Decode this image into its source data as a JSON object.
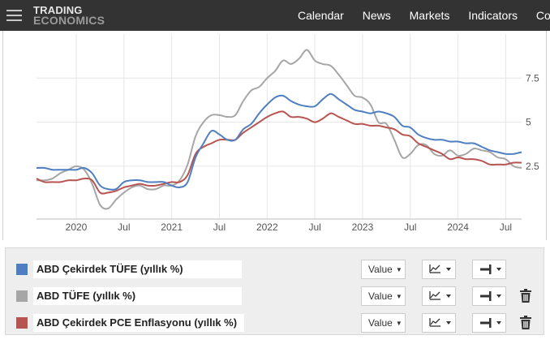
{
  "header": {
    "logo_line1": "TRADING",
    "logo_line2": "ECONOMICS",
    "nav": [
      "Calendar",
      "News",
      "Markets",
      "Indicators",
      "Countries"
    ]
  },
  "chart_data": {
    "type": "line",
    "x_ticks": [
      "2020",
      "Jul",
      "2021",
      "Jul",
      "2022",
      "Jul",
      "2023",
      "Jul",
      "2024",
      "Jul"
    ],
    "y_ticks": [
      "2.5",
      "5",
      "7.5"
    ],
    "ylim": [
      -0.5,
      10
    ],
    "xlim": [
      "2019-08",
      "2024-09"
    ],
    "grid": true,
    "series": [
      {
        "name": "ABD Çekirdek TÜFE (yıllık %)",
        "color": "#4f7fc1",
        "points": [
          [
            "2019-08",
            2.4
          ],
          [
            "2019-09",
            2.4
          ],
          [
            "2019-10",
            2.3
          ],
          [
            "2019-11",
            2.3
          ],
          [
            "2019-12",
            2.3
          ],
          [
            "2020-01",
            2.3
          ],
          [
            "2020-02",
            2.4
          ],
          [
            "2020-03",
            2.1
          ],
          [
            "2020-04",
            1.4
          ],
          [
            "2020-05",
            1.2
          ],
          [
            "2020-06",
            1.2
          ],
          [
            "2020-07",
            1.6
          ],
          [
            "2020-08",
            1.7
          ],
          [
            "2020-09",
            1.7
          ],
          [
            "2020-10",
            1.6
          ],
          [
            "2020-11",
            1.6
          ],
          [
            "2020-12",
            1.6
          ],
          [
            "2021-01",
            1.4
          ],
          [
            "2021-02",
            1.3
          ],
          [
            "2021-03",
            1.6
          ],
          [
            "2021-04",
            3.0
          ],
          [
            "2021-05",
            3.8
          ],
          [
            "2021-06",
            4.5
          ],
          [
            "2021-07",
            4.3
          ],
          [
            "2021-08",
            4.0
          ],
          [
            "2021-09",
            4.0
          ],
          [
            "2021-10",
            4.6
          ],
          [
            "2021-11",
            4.9
          ],
          [
            "2021-12",
            5.5
          ],
          [
            "2022-01",
            6.0
          ],
          [
            "2022-02",
            6.4
          ],
          [
            "2022-03",
            6.5
          ],
          [
            "2022-04",
            6.2
          ],
          [
            "2022-05",
            6.0
          ],
          [
            "2022-06",
            5.9
          ],
          [
            "2022-07",
            5.9
          ],
          [
            "2022-08",
            6.3
          ],
          [
            "2022-09",
            6.6
          ],
          [
            "2022-10",
            6.3
          ],
          [
            "2022-11",
            6.0
          ],
          [
            "2022-12",
            5.7
          ],
          [
            "2023-01",
            5.6
          ],
          [
            "2023-02",
            5.5
          ],
          [
            "2023-03",
            5.6
          ],
          [
            "2023-04",
            5.5
          ],
          [
            "2023-05",
            5.3
          ],
          [
            "2023-06",
            4.8
          ],
          [
            "2023-07",
            4.7
          ],
          [
            "2023-08",
            4.3
          ],
          [
            "2023-09",
            4.1
          ],
          [
            "2023-10",
            4.0
          ],
          [
            "2023-11",
            4.0
          ],
          [
            "2023-12",
            3.9
          ],
          [
            "2024-01",
            3.9
          ],
          [
            "2024-02",
            3.8
          ],
          [
            "2024-03",
            3.8
          ],
          [
            "2024-04",
            3.6
          ],
          [
            "2024-05",
            3.4
          ],
          [
            "2024-06",
            3.3
          ],
          [
            "2024-07",
            3.2
          ],
          [
            "2024-08",
            3.2
          ],
          [
            "2024-09",
            3.3
          ]
        ]
      },
      {
        "name": "ABD TÜFE (yıllık %)",
        "color": "#a6a6a6",
        "points": [
          [
            "2019-08",
            1.7
          ],
          [
            "2019-09",
            1.7
          ],
          [
            "2019-10",
            1.8
          ],
          [
            "2019-11",
            2.1
          ],
          [
            "2019-12",
            2.3
          ],
          [
            "2020-01",
            2.5
          ],
          [
            "2020-02",
            2.3
          ],
          [
            "2020-03",
            1.5
          ],
          [
            "2020-04",
            0.3
          ],
          [
            "2020-05",
            0.1
          ],
          [
            "2020-06",
            0.6
          ],
          [
            "2020-07",
            1.0
          ],
          [
            "2020-08",
            1.3
          ],
          [
            "2020-09",
            1.4
          ],
          [
            "2020-10",
            1.2
          ],
          [
            "2020-11",
            1.2
          ],
          [
            "2020-12",
            1.4
          ],
          [
            "2021-01",
            1.4
          ],
          [
            "2021-02",
            1.7
          ],
          [
            "2021-03",
            2.6
          ],
          [
            "2021-04",
            4.2
          ],
          [
            "2021-05",
            5.0
          ],
          [
            "2021-06",
            5.4
          ],
          [
            "2021-07",
            5.4
          ],
          [
            "2021-08",
            5.3
          ],
          [
            "2021-09",
            5.4
          ],
          [
            "2021-10",
            6.2
          ],
          [
            "2021-11",
            6.8
          ],
          [
            "2021-12",
            7.0
          ],
          [
            "2022-01",
            7.5
          ],
          [
            "2022-02",
            7.9
          ],
          [
            "2022-03",
            8.5
          ],
          [
            "2022-04",
            8.3
          ],
          [
            "2022-05",
            8.6
          ],
          [
            "2022-06",
            9.1
          ],
          [
            "2022-07",
            8.5
          ],
          [
            "2022-08",
            8.3
          ],
          [
            "2022-09",
            8.2
          ],
          [
            "2022-10",
            7.7
          ],
          [
            "2022-11",
            7.1
          ],
          [
            "2022-12",
            6.5
          ],
          [
            "2023-01",
            6.4
          ],
          [
            "2023-02",
            6.0
          ],
          [
            "2023-03",
            5.0
          ],
          [
            "2023-04",
            4.9
          ],
          [
            "2023-05",
            4.0
          ],
          [
            "2023-06",
            3.0
          ],
          [
            "2023-07",
            3.2
          ],
          [
            "2023-08",
            3.7
          ],
          [
            "2023-09",
            3.7
          ],
          [
            "2023-10",
            3.2
          ],
          [
            "2023-11",
            3.1
          ],
          [
            "2023-12",
            3.4
          ],
          [
            "2024-01",
            3.1
          ],
          [
            "2024-02",
            3.2
          ],
          [
            "2024-03",
            3.5
          ],
          [
            "2024-04",
            3.4
          ],
          [
            "2024-05",
            3.3
          ],
          [
            "2024-06",
            3.0
          ],
          [
            "2024-07",
            2.9
          ],
          [
            "2024-08",
            2.5
          ],
          [
            "2024-09",
            2.4
          ]
        ]
      },
      {
        "name": "ABD Çekirdek PCE Enflasyonu (yıllık %)",
        "color": "#b85450",
        "points": [
          [
            "2019-08",
            1.8
          ],
          [
            "2019-09",
            1.6
          ],
          [
            "2019-10",
            1.6
          ],
          [
            "2019-11",
            1.6
          ],
          [
            "2019-12",
            1.7
          ],
          [
            "2020-01",
            1.7
          ],
          [
            "2020-02",
            1.8
          ],
          [
            "2020-03",
            1.7
          ],
          [
            "2020-04",
            1.0
          ],
          [
            "2020-05",
            1.0
          ],
          [
            "2020-06",
            1.1
          ],
          [
            "2020-07",
            1.3
          ],
          [
            "2020-08",
            1.4
          ],
          [
            "2020-09",
            1.5
          ],
          [
            "2020-10",
            1.4
          ],
          [
            "2020-11",
            1.4
          ],
          [
            "2020-12",
            1.5
          ],
          [
            "2021-01",
            1.6
          ],
          [
            "2021-02",
            1.6
          ],
          [
            "2021-03",
            2.0
          ],
          [
            "2021-04",
            3.2
          ],
          [
            "2021-05",
            3.6
          ],
          [
            "2021-06",
            3.8
          ],
          [
            "2021-07",
            4.0
          ],
          [
            "2021-08",
            4.0
          ],
          [
            "2021-09",
            4.0
          ],
          [
            "2021-10",
            4.4
          ],
          [
            "2021-11",
            4.7
          ],
          [
            "2021-12",
            5.0
          ],
          [
            "2022-01",
            5.3
          ],
          [
            "2022-02",
            5.5
          ],
          [
            "2022-03",
            5.6
          ],
          [
            "2022-04",
            5.3
          ],
          [
            "2022-05",
            5.3
          ],
          [
            "2022-06",
            5.2
          ],
          [
            "2022-07",
            5.0
          ],
          [
            "2022-08",
            5.2
          ],
          [
            "2022-09",
            5.5
          ],
          [
            "2022-10",
            5.3
          ],
          [
            "2022-11",
            5.1
          ],
          [
            "2022-12",
            4.9
          ],
          [
            "2023-01",
            4.9
          ],
          [
            "2023-02",
            4.8
          ],
          [
            "2023-03",
            4.8
          ],
          [
            "2023-04",
            4.7
          ],
          [
            "2023-05",
            4.6
          ],
          [
            "2023-06",
            4.3
          ],
          [
            "2023-07",
            4.2
          ],
          [
            "2023-08",
            3.8
          ],
          [
            "2023-09",
            3.6
          ],
          [
            "2023-10",
            3.4
          ],
          [
            "2023-11",
            3.2
          ],
          [
            "2023-12",
            2.9
          ],
          [
            "2024-01",
            3.0
          ],
          [
            "2024-02",
            2.9
          ],
          [
            "2024-03",
            2.9
          ],
          [
            "2024-04",
            2.8
          ],
          [
            "2024-05",
            2.6
          ],
          [
            "2024-06",
            2.6
          ],
          [
            "2024-07",
            2.6
          ],
          [
            "2024-08",
            2.7
          ],
          [
            "2024-09",
            2.7
          ]
        ]
      }
    ]
  },
  "legend": {
    "rows": [
      {
        "label": "ABD Çekirdek TÜFE (yıllık %)",
        "color": "#4f7fc1",
        "value_label": "Value",
        "deletable": false
      },
      {
        "label": "ABD TÜFE (yıllık %)",
        "color": "#a6a6a6",
        "value_label": "Value",
        "deletable": true
      },
      {
        "label": "ABD Çekirdek PCE Enflasyonu (yıllık %)",
        "color": "#b85450",
        "value_label": "Value",
        "deletable": true
      }
    ]
  }
}
